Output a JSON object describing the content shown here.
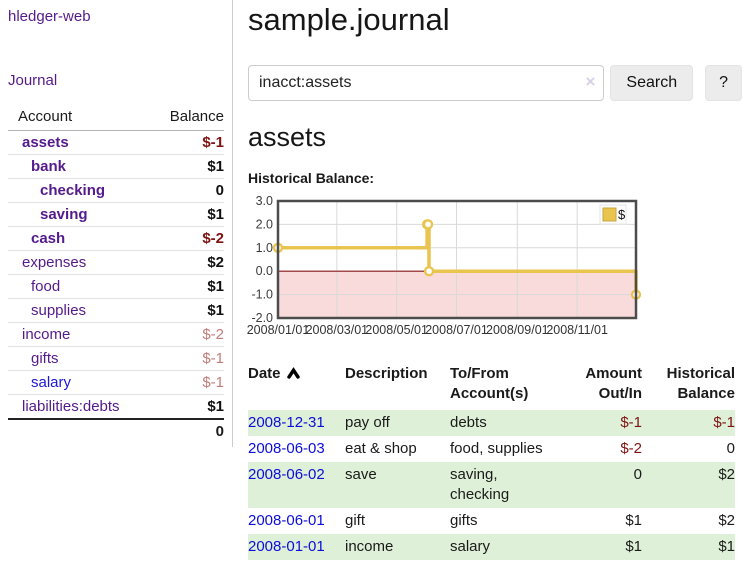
{
  "brand": {
    "label": "hledger-web"
  },
  "nav": {
    "journal": "Journal"
  },
  "sidebar": {
    "header": {
      "account": "Account",
      "balance": "Balance"
    },
    "accounts": [
      {
        "name": "assets",
        "balance": "$-1",
        "level": 0,
        "emphasis": true,
        "name_style": "purple",
        "balance_style": "negative"
      },
      {
        "name": "bank",
        "balance": "$1",
        "level": 1,
        "emphasis": true,
        "name_style": "purple",
        "balance_style": "normal"
      },
      {
        "name": "checking",
        "balance": "0",
        "level": 2,
        "emphasis": true,
        "name_style": "purple",
        "balance_style": "normal"
      },
      {
        "name": "saving",
        "balance": "$1",
        "level": 2,
        "emphasis": true,
        "name_style": "purple",
        "balance_style": "normal"
      },
      {
        "name": "cash",
        "balance": "$-2",
        "level": 1,
        "emphasis": true,
        "name_style": "purple",
        "balance_style": "negative"
      },
      {
        "name": "expenses",
        "balance": "$2",
        "level": 0,
        "emphasis": false,
        "name_style": "purple",
        "balance_style": "normal"
      },
      {
        "name": "food",
        "balance": "$1",
        "level": 1,
        "emphasis": false,
        "name_style": "purple",
        "balance_style": "normal"
      },
      {
        "name": "supplies",
        "balance": "$1",
        "level": 1,
        "emphasis": false,
        "name_style": "purple",
        "balance_style": "normal"
      },
      {
        "name": "income",
        "balance": "$-2",
        "level": 0,
        "emphasis": false,
        "name_style": "purple",
        "balance_style": "negative-faded"
      },
      {
        "name": "gifts",
        "balance": "$-1",
        "level": 1,
        "emphasis": false,
        "name_style": "purple",
        "balance_style": "negative-faded"
      },
      {
        "name": "salary",
        "balance": "$-1",
        "level": 1,
        "emphasis": false,
        "name_style": "blue",
        "balance_style": "negative-faded"
      },
      {
        "name": "liabilities:debts",
        "balance": "$1",
        "level": 0,
        "emphasis": false,
        "name_style": "purple",
        "balance_style": "normal"
      }
    ],
    "total": "0"
  },
  "page": {
    "title": "sample.journal",
    "account_title": "assets",
    "chart_heading": "Historical Balance:"
  },
  "search": {
    "value": "inacct:assets",
    "clear": "×",
    "search_button": "Search",
    "help_button": "?"
  },
  "chart_data": {
    "type": "line",
    "step": true,
    "legend": [
      {
        "label": "$",
        "color": "#e9c44f"
      }
    ],
    "legend_position": "top-right",
    "x_ticks": [
      "2008/01/01",
      "2008/03/01",
      "2008/05/01",
      "2008/07/01",
      "2008/09/01",
      "2008/11/01"
    ],
    "y_ticks": [
      3.0,
      2.0,
      1.0,
      0.0,
      -1.0,
      -2.0
    ],
    "xlim": [
      "2008-01-01",
      "2008-12-31"
    ],
    "ylim": [
      -2,
      3
    ],
    "grid": true,
    "negative_region_color": "#f9dbdb",
    "zero_line_color": "#8d1a1a",
    "series": [
      {
        "name": "$",
        "color": "#e9c44f",
        "points": [
          [
            "2008-01-01",
            1
          ],
          [
            "2008-06-01",
            2
          ],
          [
            "2008-06-02",
            2
          ],
          [
            "2008-06-03",
            0
          ],
          [
            "2008-12-31",
            -1
          ]
        ]
      }
    ]
  },
  "register": {
    "headers": {
      "date": "Date",
      "description": "Description",
      "accounts": "To/From\nAccount(s)",
      "amount": "Amount\nOut/In",
      "balance": "Historical\nBalance"
    },
    "rows": [
      {
        "date": "2008-12-31",
        "description": "pay off",
        "accounts": "debts",
        "amount": "$-1",
        "balance": "$-1",
        "amount_negative": true,
        "balance_negative": true
      },
      {
        "date": "2008-06-03",
        "description": "eat & shop",
        "accounts": "food, supplies",
        "amount": "$-2",
        "balance": "0",
        "amount_negative": true,
        "balance_negative": false
      },
      {
        "date": "2008-06-02",
        "description": "save",
        "accounts": "saving,\nchecking",
        "amount": "0",
        "balance": "$2",
        "amount_negative": false,
        "balance_negative": false
      },
      {
        "date": "2008-06-01",
        "description": "gift",
        "accounts": "gifts",
        "amount": "$1",
        "balance": "$2",
        "amount_negative": false,
        "balance_negative": false
      },
      {
        "date": "2008-01-01",
        "description": "income",
        "accounts": "salary",
        "amount": "$1",
        "balance": "$1",
        "amount_negative": false,
        "balance_negative": false
      }
    ]
  },
  "colors": {
    "accent_purple": "#551a8b",
    "link_blue": "#1d17d6",
    "date_link_blue": "#0d0dd9",
    "negative": "#7e1211",
    "negative_faded": "#c17d7a",
    "row_green": "#dff0d8",
    "chart_line": "#e9c44f",
    "chart_negative_region": "#f9dbdb",
    "chart_zero_line": "#8d1a1a"
  }
}
